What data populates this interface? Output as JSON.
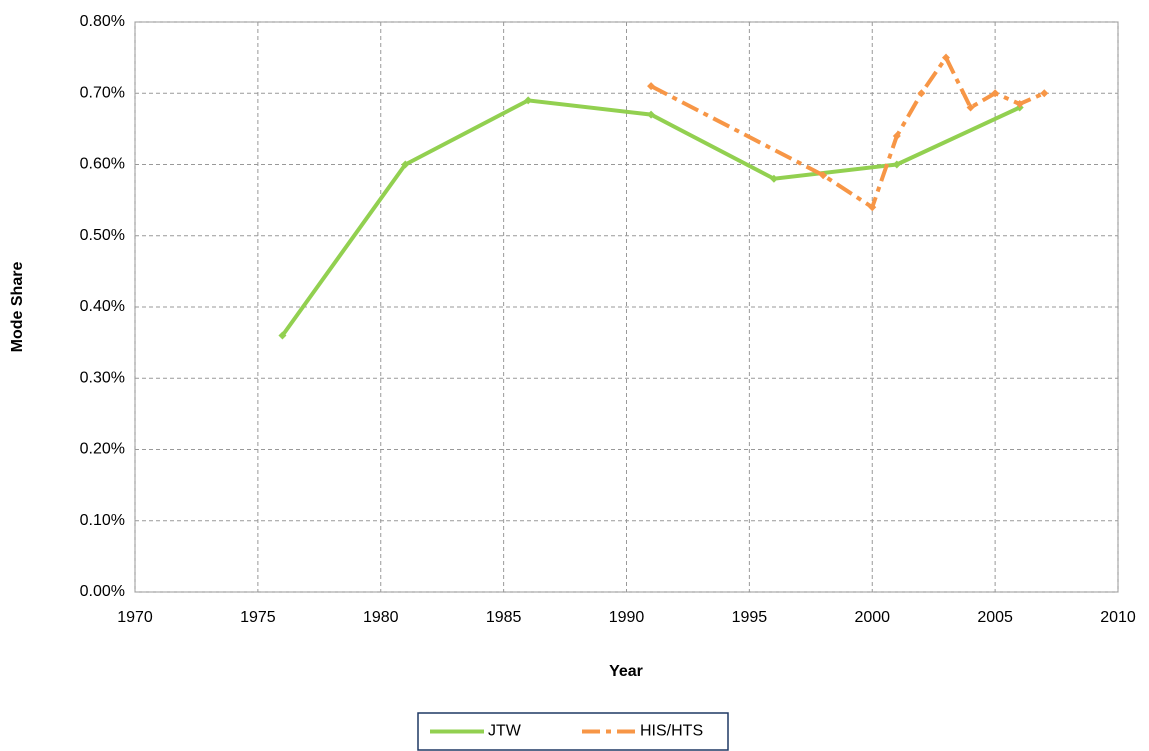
{
  "chart_data": {
    "type": "line",
    "x_label": "Year",
    "y_label": "Mode Share",
    "series": [
      {
        "name": "JTW",
        "color": "#92d050",
        "dash": "solid",
        "x": [
          1976,
          1981,
          1986,
          1991,
          1996,
          2001,
          2006
        ],
        "values": [
          0.36,
          0.6,
          0.69,
          0.67,
          0.58,
          0.6,
          0.68
        ]
      },
      {
        "name": "HIS/HTS",
        "color": "#f79646",
        "dash": "dashdot",
        "x": [
          1991,
          1998,
          2000,
          2001,
          2002,
          2003,
          2004,
          2005,
          2006,
          2007
        ],
        "values": [
          0.71,
          0.585,
          0.54,
          0.64,
          0.7,
          0.75,
          0.68,
          0.7,
          0.685,
          0.7
        ]
      }
    ],
    "xlim": [
      1970,
      2010
    ],
    "xticks": [
      1970,
      1975,
      1980,
      1985,
      1990,
      1995,
      2000,
      2005,
      2010
    ],
    "ylim": [
      0,
      0.8
    ],
    "yticks": [
      {
        "value": 0,
        "label": "0.00%"
      },
      {
        "value": 0.1,
        "label": "0.10%"
      },
      {
        "value": 0.2,
        "label": "0.20%"
      },
      {
        "value": 0.3,
        "label": "0.30%"
      },
      {
        "value": 0.4,
        "label": "0.40%"
      },
      {
        "value": 0.5,
        "label": "0.50%"
      },
      {
        "value": 0.6,
        "label": "0.60%"
      },
      {
        "value": 0.7,
        "label": "0.70%"
      },
      {
        "value": 0.8,
        "label": "0.80%"
      }
    ],
    "grid": true,
    "legend": "bottom"
  }
}
